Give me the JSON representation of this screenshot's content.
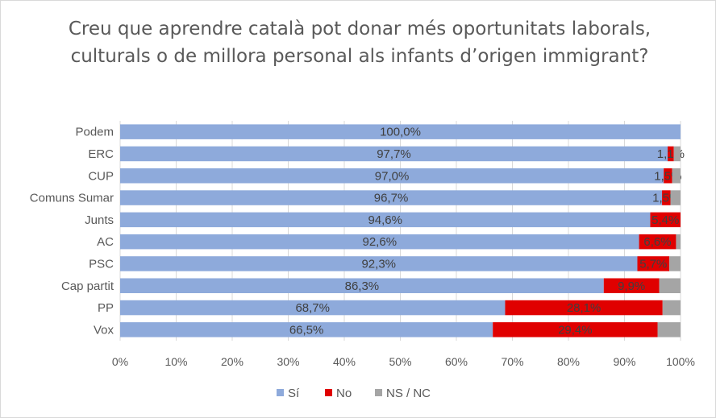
{
  "chart_data": {
    "type": "bar",
    "orientation": "horizontal",
    "stacked": true,
    "title": "Creu que aprendre català pot donar més oportunitats laborals, culturals o de millora personal als infants d’origen immigrant?",
    "categories": [
      "Podem",
      "ERC",
      "CUP",
      "Comuns Sumar",
      "Junts",
      "AC",
      "PSC",
      "Cap partit",
      "PP",
      "Vox"
    ],
    "series": [
      {
        "name": "Sí",
        "color": "#8eaadb",
        "values": [
          100.0,
          97.7,
          97.0,
          96.7,
          94.6,
          92.6,
          92.3,
          86.3,
          68.7,
          66.5
        ],
        "labels": [
          "100,0%",
          "97,7%",
          "97,0%",
          "96,7%",
          "94,6%",
          "92,6%",
          "92,3%",
          "86,3%",
          "68,7%",
          "66,5%"
        ]
      },
      {
        "name": "No",
        "color": "#e00000",
        "values": [
          0,
          1.1,
          1.5,
          1.5,
          5.4,
          6.6,
          5.7,
          9.9,
          28.1,
          29.4
        ],
        "labels": [
          "",
          "1,1%",
          "1,5%",
          "1,5%",
          "5,4%",
          "6,6%",
          "5,7%",
          "9,9%",
          "28,1%",
          "29,4%"
        ]
      },
      {
        "name": "NS / NC",
        "color": "#a5a5a5",
        "values": [
          0,
          1.2,
          1.5,
          1.8,
          0,
          0.8,
          2.0,
          3.8,
          3.2,
          4.1
        ],
        "labels": [
          "",
          "",
          "",
          "",
          "",
          "",
          "",
          "",
          "",
          ""
        ]
      }
    ],
    "xlim": [
      0,
      100
    ],
    "xticks": [
      "0%",
      "10%",
      "20%",
      "30%",
      "40%",
      "50%",
      "60%",
      "70%",
      "80%",
      "90%",
      "100%"
    ],
    "grid": true,
    "legend": "bottom"
  }
}
